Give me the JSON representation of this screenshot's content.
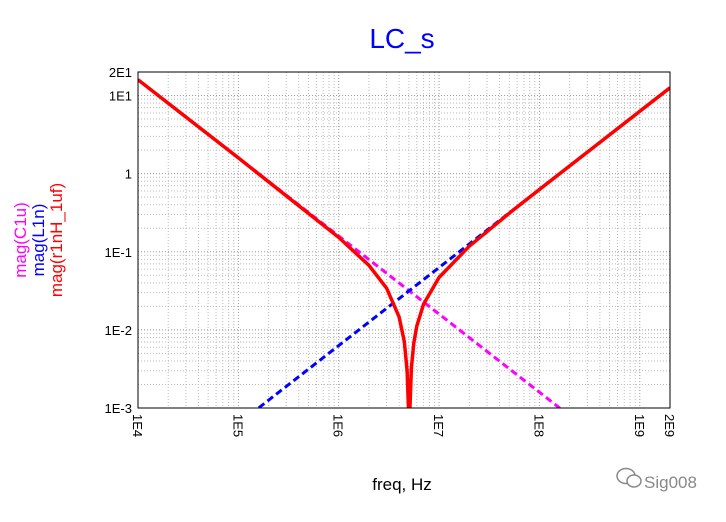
{
  "chart_data": {
    "type": "line",
    "title": "LC_s",
    "xlabel": "freq, Hz",
    "x_scale": "log",
    "y_scale": "log",
    "xlim": [
      10000,
      2000000000
    ],
    "ylim": [
      0.001,
      20
    ],
    "grid": true,
    "x_ticks": [
      {
        "value": 10000,
        "label": "1E4"
      },
      {
        "value": 100000,
        "label": "1E5"
      },
      {
        "value": 1000000,
        "label": "1E6"
      },
      {
        "value": 10000000,
        "label": "1E7"
      },
      {
        "value": 100000000,
        "label": "1E8"
      },
      {
        "value": 1000000000,
        "label": "1E9"
      },
      {
        "value": 2000000000,
        "label": "2E9"
      }
    ],
    "y_ticks": [
      {
        "value": 20,
        "label": "2E1"
      },
      {
        "value": 10,
        "label": "1E1"
      },
      {
        "value": 1,
        "label": "1"
      },
      {
        "value": 0.1,
        "label": "1E-1"
      },
      {
        "value": 0.01,
        "label": "1E-2"
      },
      {
        "value": 0.001,
        "label": "1E-3"
      }
    ],
    "series": [
      {
        "name": "mag(C1u)",
        "color": "#ff00ff",
        "dash": true,
        "x": [
          10000,
          100000,
          1000000,
          10000000,
          100000000,
          160000000
        ],
        "y": [
          15.92,
          1.592,
          0.1592,
          0.01592,
          0.001592,
          0.000995
        ]
      },
      {
        "name": "mag(L1n)",
        "color": "#0000ff",
        "dash": true,
        "x": [
          160000,
          1000000,
          10000000,
          100000000,
          1000000000,
          2000000000
        ],
        "y": [
          0.001005,
          0.006283,
          0.06283,
          0.6283,
          6.283,
          12.57
        ]
      },
      {
        "name": "mag(r1nH_1uf)",
        "color": "#ff0000",
        "dash": false,
        "x": [
          10000,
          100000,
          1000000,
          2000000,
          3000000,
          4000000,
          4500000,
          4800000,
          4950000,
          5030000,
          5100000,
          5300000,
          5600000,
          6000000,
          7000000,
          10000000,
          20000000,
          50000000,
          100000000,
          1000000000,
          2000000000
        ],
        "y": [
          15.92,
          1.591,
          0.1529,
          0.067,
          0.0342,
          0.01466,
          0.0071,
          0.003,
          0.00105,
          0.0001,
          0.00083,
          0.00327,
          0.00677,
          0.01117,
          0.02124,
          0.04691,
          0.1177,
          0.311,
          0.6267,
          6.283,
          12.566
        ]
      }
    ]
  },
  "watermark": {
    "text": "Sig008",
    "icon": "wechat-icon"
  }
}
